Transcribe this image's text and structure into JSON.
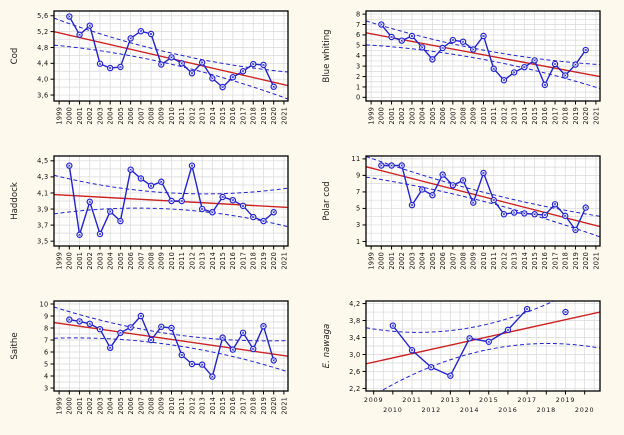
{
  "page": {
    "background": "#FDF9EC",
    "description": "Six-panel time-series figure of fish stock indices with linear trend and confidence bands"
  },
  "colors": {
    "series": "#2323CC",
    "trend": "#CC2222",
    "ci": "#2323CC",
    "grid": "#D8D8D8",
    "frame": "#000000",
    "tick_text": "#111111",
    "plot_bg": "#FFFFFF",
    "marker_fill": "#FFFFFF"
  },
  "chart_data": [
    {
      "type": "line",
      "label": "Cod",
      "italic": false,
      "xlim": [
        1998.5,
        2021.4
      ],
      "ylim": [
        3.45,
        5.72
      ],
      "x_ticks": [
        1999,
        2000,
        2001,
        2002,
        2003,
        2004,
        2005,
        2006,
        2007,
        2008,
        2009,
        2010,
        2011,
        2012,
        2013,
        2014,
        2015,
        2016,
        2017,
        2018,
        2019,
        2020,
        2021
      ],
      "x_stagger": false,
      "x_grid_step": 1,
      "y_ticks": [
        3.6,
        4.0,
        4.4,
        4.8,
        5.2,
        5.6
      ],
      "y_tick_labels": [
        "3,6",
        "4,0",
        "4,4",
        "4,8",
        "5,2",
        "5,6"
      ],
      "y_minor_step": 0.2,
      "years": [
        2000,
        2001,
        2002,
        2003,
        2004,
        2005,
        2006,
        2007,
        2008,
        2009,
        2010,
        2011,
        2012,
        2013,
        2014,
        2015,
        2016,
        2017,
        2018,
        2019,
        2020
      ],
      "values": [
        5.58,
        5.12,
        5.35,
        4.39,
        4.28,
        4.31,
        5.03,
        5.21,
        5.14,
        4.37,
        4.55,
        4.4,
        4.15,
        4.42,
        4.02,
        3.8,
        4.05,
        4.2,
        4.38,
        4.36,
        3.81
      ],
      "trend": {
        "y_start": 5.2,
        "y_end": 3.84
      },
      "ci_halfwidth": {
        "mid": 0.14,
        "end": 0.34
      }
    },
    {
      "type": "line",
      "label": "Blue whiting",
      "italic": false,
      "xlim": [
        1998.5,
        2021.4
      ],
      "ylim": [
        -0.35,
        8.3
      ],
      "x_ticks": [
        1999,
        2000,
        2001,
        2002,
        2003,
        2004,
        2005,
        2006,
        2007,
        2008,
        2009,
        2010,
        2011,
        2012,
        2013,
        2014,
        2015,
        2016,
        2017,
        2018,
        2019,
        2020,
        2021
      ],
      "x_stagger": false,
      "x_grid_step": 1,
      "y_ticks": [
        0,
        1,
        2,
        3,
        4,
        5,
        6,
        7,
        8
      ],
      "y_tick_labels": [
        "0",
        "1",
        "2",
        "3",
        "4",
        "5",
        "6",
        "7",
        "8"
      ],
      "y_minor_step": 0.5,
      "years": [
        2000,
        2001,
        2002,
        2003,
        2004,
        2005,
        2006,
        2007,
        2008,
        2009,
        2010,
        2011,
        2012,
        2013,
        2014,
        2015,
        2016,
        2017,
        2018,
        2019,
        2020
      ],
      "values": [
        7.0,
        5.8,
        5.45,
        5.9,
        4.8,
        3.65,
        4.75,
        5.5,
        5.35,
        4.6,
        5.9,
        2.75,
        1.65,
        2.4,
        2.9,
        3.55,
        1.2,
        3.2,
        2.1,
        3.15,
        4.55
      ],
      "trend": {
        "y_start": 6.2,
        "y_end": 2.0
      },
      "ci_halfwidth": {
        "mid": 0.45,
        "end": 1.15
      }
    },
    {
      "type": "line",
      "label": "Haddock",
      "italic": false,
      "xlim": [
        1998.5,
        2021.4
      ],
      "ylim": [
        3.44,
        4.56
      ],
      "x_ticks": [
        1999,
        2000,
        2001,
        2002,
        2003,
        2004,
        2005,
        2006,
        2007,
        2008,
        2009,
        2010,
        2011,
        2012,
        2013,
        2014,
        2015,
        2016,
        2017,
        2018,
        2019,
        2020,
        2021
      ],
      "x_stagger": false,
      "x_grid_step": 1,
      "y_ticks": [
        3.5,
        3.7,
        3.9,
        4.1,
        4.3,
        4.5
      ],
      "y_tick_labels": [
        "3,5",
        "3,7",
        "3,9",
        "4,1",
        "4,3",
        "4,5"
      ],
      "y_minor_step": 0.1,
      "years": [
        2000,
        2001,
        2002,
        2003,
        2004,
        2005,
        2006,
        2007,
        2008,
        2009,
        2010,
        2011,
        2012,
        2013,
        2014,
        2015,
        2016,
        2017,
        2018,
        2019,
        2020
      ],
      "values": [
        4.44,
        3.58,
        3.99,
        3.59,
        3.87,
        3.75,
        4.39,
        4.28,
        4.19,
        4.24,
        4.0,
        4.0,
        4.44,
        3.9,
        3.86,
        4.05,
        4.01,
        3.94,
        3.8,
        3.75,
        3.86
      ],
      "trend": {
        "y_start": 4.08,
        "y_end": 3.92
      },
      "ci_halfwidth": {
        "mid": 0.1,
        "end": 0.24
      }
    },
    {
      "type": "line",
      "label": "Polar cod",
      "italic": false,
      "xlim": [
        1998.5,
        2021.4
      ],
      "ylim": [
        0.45,
        11.35
      ],
      "x_ticks": [
        1999,
        2000,
        2001,
        2002,
        2003,
        2004,
        2005,
        2006,
        2007,
        2008,
        2009,
        2010,
        2011,
        2012,
        2013,
        2014,
        2015,
        2016,
        2017,
        2018,
        2019,
        2020,
        2021
      ],
      "x_stagger": false,
      "x_grid_step": 1,
      "y_ticks": [
        1,
        3,
        5,
        7,
        9,
        11
      ],
      "y_tick_labels": [
        "1",
        "3",
        "5",
        "7",
        "9",
        "11"
      ],
      "y_minor_step": 1,
      "years": [
        2000,
        2001,
        2002,
        2003,
        2004,
        2005,
        2006,
        2007,
        2008,
        2009,
        2010,
        2011,
        2012,
        2013,
        2014,
        2015,
        2016,
        2017,
        2018,
        2019,
        2020
      ],
      "values": [
        10.2,
        10.2,
        10.2,
        5.4,
        7.3,
        6.6,
        9.1,
        7.8,
        8.4,
        5.7,
        9.3,
        6.0,
        4.3,
        4.5,
        4.4,
        4.3,
        4.2,
        5.5,
        4.1,
        2.4,
        5.1
      ],
      "trend": {
        "y_start": 10.05,
        "y_end": 2.8
      },
      "ci_halfwidth": {
        "mid": 0.55,
        "end": 1.25
      }
    },
    {
      "type": "line",
      "label": "Saithe",
      "italic": false,
      "xlim": [
        1998.5,
        2021.4
      ],
      "ylim": [
        2.75,
        10.25
      ],
      "x_ticks": [
        1999,
        2000,
        2001,
        2002,
        2003,
        2004,
        2005,
        2006,
        2007,
        2008,
        2009,
        2010,
        2011,
        2012,
        2013,
        2014,
        2015,
        2016,
        2017,
        2018,
        2019,
        2020,
        2021
      ],
      "x_stagger": false,
      "x_grid_step": 1,
      "y_ticks": [
        3,
        4,
        5,
        6,
        7,
        8,
        9,
        10
      ],
      "y_tick_labels": [
        "3",
        "4",
        "5",
        "6",
        "7",
        "8",
        "9",
        "10"
      ],
      "y_minor_step": 0.5,
      "years": [
        2000,
        2001,
        2002,
        2003,
        2004,
        2005,
        2006,
        2007,
        2008,
        2009,
        2010,
        2011,
        2012,
        2013,
        2014,
        2015,
        2016,
        2017,
        2018,
        2019,
        2020
      ],
      "values": [
        8.7,
        8.55,
        8.35,
        7.9,
        6.35,
        7.6,
        8.05,
        9.0,
        7.0,
        8.1,
        8.0,
        5.75,
        5.0,
        4.95,
        3.95,
        7.2,
        6.2,
        7.6,
        6.25,
        8.15,
        5.3
      ],
      "trend": {
        "y_start": 8.45,
        "y_end": 5.65
      },
      "ci_halfwidth": {
        "mid": 0.45,
        "end": 1.3
      }
    },
    {
      "type": "line",
      "label": "E. nawaga",
      "italic": true,
      "xlim": [
        2008.6,
        2020.8
      ],
      "ylim": [
        2.14,
        4.26
      ],
      "x_ticks": [
        2009,
        2010,
        2011,
        2012,
        2013,
        2014,
        2015,
        2016,
        2017,
        2018,
        2019,
        2020
      ],
      "x_stagger": true,
      "x_grid_step": 0.5,
      "y_ticks": [
        2.2,
        2.6,
        3.0,
        3.4,
        3.8,
        4.2
      ],
      "y_tick_labels": [
        "2,2",
        "2,6",
        "3,0",
        "3,4",
        "3,8",
        "4,2"
      ],
      "y_minor_step": 0.2,
      "years": [
        2010,
        2011,
        2012,
        2013,
        2014,
        2015,
        2016,
        2017,
        2019
      ],
      "values": [
        3.68,
        3.1,
        2.7,
        2.5,
        3.38,
        3.3,
        3.58,
        4.07,
        4.0
      ],
      "trend": {
        "y_start": 2.78,
        "y_end": 4.0
      },
      "ci_halfwidth": {
        "mid": 0.3,
        "end": 0.85
      }
    }
  ]
}
